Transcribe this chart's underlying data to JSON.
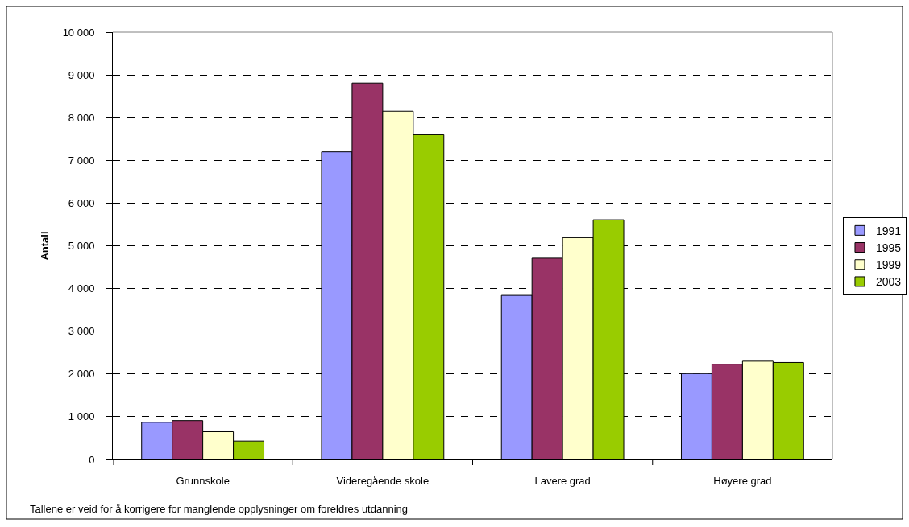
{
  "chart_data": {
    "type": "bar",
    "categories": [
      "Grunnskole",
      "Videregående skole",
      "Lavere grad",
      "Høyere grad"
    ],
    "ylabel": "Antall",
    "series": [
      {
        "name": "1991",
        "color": "#9999ff",
        "values": [
          870,
          7200,
          3840,
          2010
        ]
      },
      {
        "name": "1995",
        "color": "#993366",
        "values": [
          910,
          8810,
          4710,
          2230
        ]
      },
      {
        "name": "1999",
        "color": "#ffffcc",
        "values": [
          650,
          8150,
          5190,
          2300
        ]
      },
      {
        "name": "2003",
        "color": "#99cc00",
        "values": [
          430,
          7600,
          5610,
          2270
        ]
      }
    ],
    "ylim": [
      0,
      10000
    ],
    "yticks": [
      0,
      {
        "value": 1000,
        "label": "1 000"
      },
      {
        "value": 2000,
        "label": "2 000"
      },
      {
        "value": 3000,
        "label": "3 000"
      },
      {
        "value": 4000,
        "label": "4 000"
      },
      {
        "value": 5000,
        "label": "5 000"
      },
      {
        "value": 6000,
        "label": "6 000"
      },
      {
        "value": 7000,
        "label": "7 000"
      },
      {
        "value": 8000,
        "label": "8 000"
      },
      {
        "value": 9000,
        "label": "9 000"
      },
      {
        "value": 10000,
        "label": "10 000"
      }
    ],
    "grid": "y",
    "legend": "right",
    "annotations": [
      "Tallene er veid for å korrigere for manglende opplysninger om foreldres utdanning"
    ]
  }
}
